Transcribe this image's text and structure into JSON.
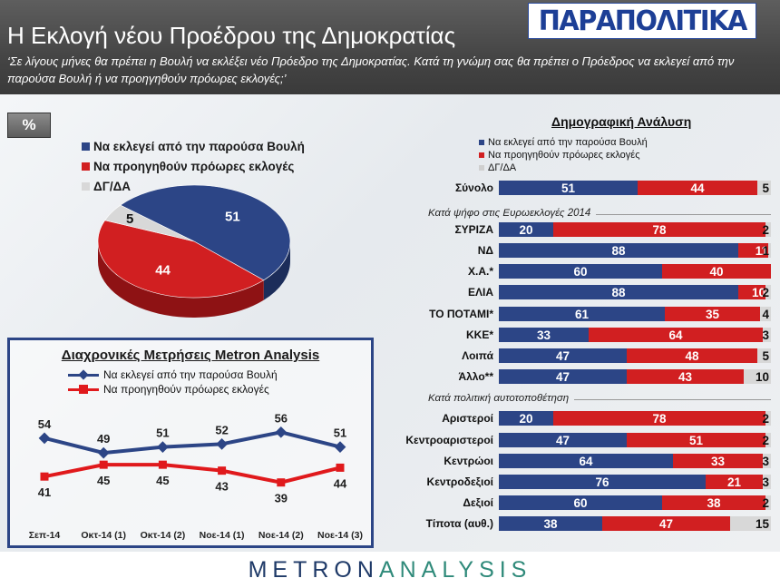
{
  "header": {
    "title": "Η Εκλογή νέου Προέδρου της Δημοκρατίας",
    "question": "‘Σε λίγους μήνες θα πρέπει η Βουλή να εκλέξει νέο Πρόεδρο της Δημοκρατίας. Κατά τη γνώμη σας θα πρέπει ο Πρόεδρος να εκλεγεί από την παρούσα Βουλή ή να προηγηθούν πρόωρες εκλογές;’",
    "logo": "ΠΑΡΑΠΟΛΙΤΙΚΑ"
  },
  "percent_label": "%",
  "colors": {
    "blue": "#2c4586",
    "red": "#d11f21",
    "grey": "#d8d8d8"
  },
  "chart_data": [
    {
      "type": "pie",
      "labels": [
        "Να εκλεγεί από την παρούσα Βουλή",
        "Να προηγηθούν πρόωρες εκλογές",
        "ΔΓ/ΔΑ"
      ],
      "values": [
        51,
        44,
        5
      ],
      "colors": [
        "#2c4586",
        "#d11f21",
        "#d8d8d8"
      ],
      "legend": "top"
    },
    {
      "type": "line",
      "title": "Διαχρονικές Μετρήσεις Metron Analysis",
      "categories": [
        "Σεπ-14",
        "Οκτ-14 (1)",
        "Οκτ-14 (2)",
        "Νοε-14 (1)",
        "Νοε-14 (2)",
        "Νοε-14 (3)"
      ],
      "series": [
        {
          "name": "Να εκλεγεί από την παρούσα Βουλή",
          "values": [
            54,
            49,
            51,
            52,
            56,
            51
          ],
          "color": "#2c4586"
        },
        {
          "name": "Να προηγηθούν πρόωρες εκλογές",
          "values": [
            41,
            45,
            45,
            43,
            39,
            44
          ],
          "color": "#e0191c"
        }
      ],
      "legend": "top",
      "ylim": [
        30,
        65
      ]
    },
    {
      "type": "bar",
      "stacked": true,
      "title": "Δημογραφική Ανάλυση",
      "series_names": [
        "Να εκλεγεί από την παρούσα Βουλή",
        "Να προηγηθούν πρόωρες εκλογές",
        "ΔΓ/ΔΑ"
      ],
      "sections": [
        {
          "label": "",
          "rows": [
            {
              "label": "Σύνολο",
              "values": [
                51,
                44,
                5
              ]
            }
          ]
        },
        {
          "label": "Κατά ψήφο στις Ευρωεκλογές 2014",
          "rows": [
            {
              "label": "ΣΥΡΙΖΑ",
              "values": [
                20,
                78,
                2
              ]
            },
            {
              "label": "ΝΔ",
              "values": [
                88,
                11,
                1
              ]
            },
            {
              "label": "Χ.Α.*",
              "values": [
                60,
                40,
                null
              ]
            },
            {
              "label": "ΕΛΙΑ",
              "values": [
                88,
                10,
                2
              ]
            },
            {
              "label": "ΤΟ ΠΟΤΑΜΙ*",
              "values": [
                61,
                35,
                4
              ]
            },
            {
              "label": "ΚΚΕ*",
              "values": [
                33,
                64,
                3
              ]
            },
            {
              "label": "Λοιπά",
              "values": [
                47,
                48,
                5
              ]
            },
            {
              "label": "Άλλο**",
              "values": [
                47,
                43,
                10
              ]
            }
          ]
        },
        {
          "label": "Κατά πολιτική αυτοτοποθέτηση",
          "rows": [
            {
              "label": "Αριστεροί",
              "values": [
                20,
                78,
                2
              ]
            },
            {
              "label": "Κεντροαριστεροί",
              "values": [
                47,
                51,
                2
              ]
            },
            {
              "label": "Κεντρώοι",
              "values": [
                64,
                33,
                3
              ]
            },
            {
              "label": "Κεντροδεξιοί",
              "values": [
                76,
                21,
                3
              ]
            },
            {
              "label": "Δεξιοί",
              "values": [
                60,
                38,
                2
              ]
            },
            {
              "label": "Τίποτα (αυθ.)",
              "values": [
                38,
                47,
                15
              ]
            }
          ]
        }
      ]
    }
  ],
  "footer": {
    "part1": "METRON",
    "part2": "ANALYSIS"
  }
}
